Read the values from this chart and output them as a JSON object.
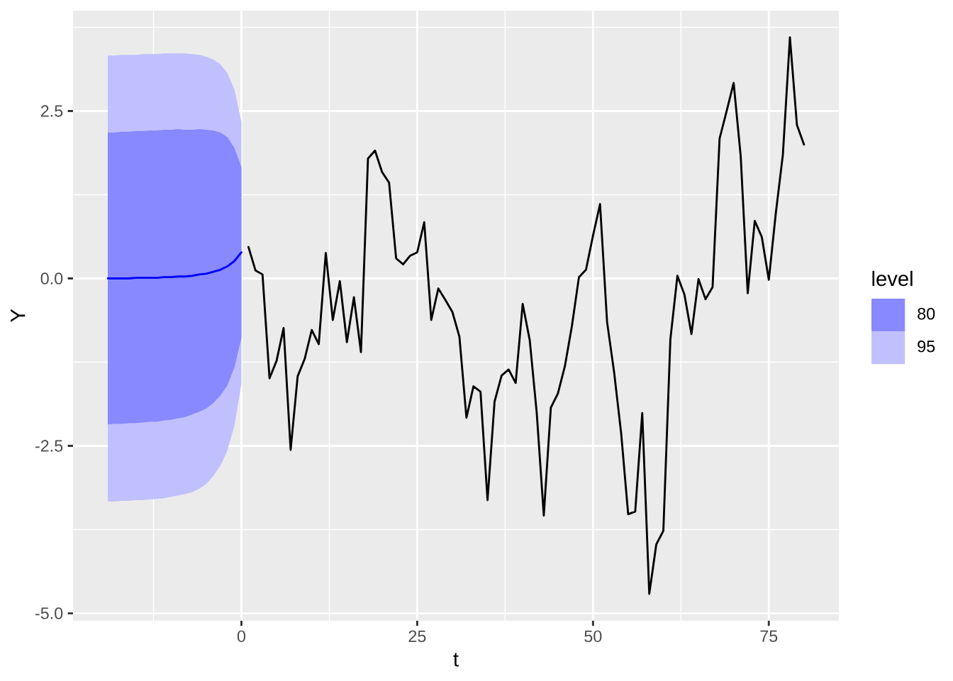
{
  "chart_data": {
    "type": "line",
    "xlabel": "t",
    "ylabel": "Y",
    "legend_title": "level",
    "legend": "right",
    "grid": true,
    "xlim": [
      -23.95,
      84.95
    ],
    "xticks": [
      0,
      25,
      50,
      75
    ],
    "ylim": [
      -5.11,
      4.0
    ],
    "yticks": [
      {
        "value": -5,
        "label": "-5.0"
      },
      {
        "value": -2.5,
        "label": "-2.5"
      },
      {
        "value": 0,
        "label": "0.0"
      },
      {
        "value": 2.5,
        "label": "2.5"
      }
    ],
    "series": [
      {
        "name": "95",
        "type": "area",
        "color": "#c0c0ff",
        "x": [
          -19,
          -18,
          -17,
          -16,
          -15,
          -14,
          -13,
          -12,
          -11,
          -10,
          -9,
          -8,
          -7,
          -6,
          -5,
          -4,
          -3,
          -2,
          -1,
          0
        ],
        "values": [
          null,
          null,
          null,
          null,
          null,
          null,
          null,
          null,
          null,
          null,
          null,
          null,
          null,
          null,
          null,
          null,
          null,
          null,
          null,
          null
        ],
        "lower": [
          -3.33,
          -3.33,
          -3.32,
          -3.32,
          -3.31,
          -3.31,
          -3.3,
          -3.29,
          -3.28,
          -3.26,
          -3.24,
          -3.22,
          -3.19,
          -3.14,
          -3.07,
          -2.95,
          -2.8,
          -2.57,
          -2.2,
          -1.57
        ],
        "upper": [
          3.33,
          3.33,
          3.34,
          3.34,
          3.34,
          3.35,
          3.35,
          3.35,
          3.36,
          3.36,
          3.36,
          3.36,
          3.35,
          3.34,
          3.31,
          3.27,
          3.2,
          3.07,
          2.82,
          2.34
        ]
      },
      {
        "name": "80",
        "type": "area",
        "color": "#8888ff",
        "x": [
          -19,
          -18,
          -17,
          -16,
          -15,
          -14,
          -13,
          -12,
          -11,
          -10,
          -9,
          -8,
          -7,
          -6,
          -5,
          -4,
          -3,
          -2,
          -1,
          0
        ],
        "values": [
          null,
          null,
          null,
          null,
          null,
          null,
          null,
          null,
          null,
          null,
          null,
          null,
          null,
          null,
          null,
          null,
          null,
          null,
          null,
          null
        ],
        "lower": [
          -2.18,
          -2.17,
          -2.17,
          -2.16,
          -2.16,
          -2.15,
          -2.14,
          -2.14,
          -2.12,
          -2.11,
          -2.09,
          -2.07,
          -2.03,
          -1.99,
          -1.94,
          -1.86,
          -1.75,
          -1.6,
          -1.33,
          -0.89
        ],
        "upper": [
          2.18,
          2.18,
          2.19,
          2.19,
          2.2,
          2.2,
          2.21,
          2.21,
          2.22,
          2.22,
          2.23,
          2.22,
          2.22,
          2.23,
          2.22,
          2.21,
          2.18,
          2.11,
          1.95,
          1.66
        ]
      },
      {
        "type": "line",
        "color": "#0000ff",
        "x": [
          -19,
          -18,
          -17,
          -16,
          -15,
          -14,
          -13,
          -12,
          -11,
          -10,
          -9,
          -8,
          -7,
          -6,
          -5,
          -4,
          -3,
          -2,
          -1,
          0
        ],
        "values": [
          0.0,
          0.0,
          0.0,
          0.0,
          0.01,
          0.01,
          0.01,
          0.01,
          0.02,
          0.02,
          0.03,
          0.03,
          0.04,
          0.06,
          0.07,
          0.1,
          0.13,
          0.18,
          0.26,
          0.39
        ]
      },
      {
        "type": "line",
        "color": "#000000",
        "x": [
          1,
          2,
          3,
          4,
          5,
          6,
          7,
          8,
          9,
          10,
          11,
          12,
          13,
          14,
          15,
          16,
          17,
          18,
          19,
          20,
          21,
          22,
          23,
          24,
          25,
          26,
          27,
          28,
          29,
          30,
          31,
          32,
          33,
          34,
          35,
          36,
          37,
          38,
          39,
          40,
          41,
          42,
          43,
          44,
          45,
          46,
          47,
          48,
          49,
          50,
          51,
          52,
          53,
          54,
          55,
          56,
          57,
          58,
          59,
          60,
          61,
          62,
          63,
          64,
          65,
          66,
          67,
          68,
          69,
          70,
          71,
          72,
          73,
          74,
          75,
          76,
          77,
          78,
          79,
          80
        ],
        "values": [
          0.47,
          0.12,
          0.06,
          -1.49,
          -1.23,
          -0.74,
          -2.56,
          -1.46,
          -1.2,
          -0.77,
          -0.98,
          0.38,
          -0.62,
          -0.04,
          -0.95,
          -0.28,
          -1.1,
          1.79,
          1.91,
          1.59,
          1.43,
          0.3,
          0.21,
          0.34,
          0.39,
          0.84,
          -0.62,
          -0.15,
          -0.32,
          -0.5,
          -0.87,
          -2.08,
          -1.61,
          -1.69,
          -3.31,
          -1.84,
          -1.45,
          -1.36,
          -1.56,
          -0.38,
          -0.92,
          -2.01,
          -3.54,
          -1.93,
          -1.72,
          -1.31,
          -0.71,
          0.02,
          0.13,
          0.64,
          1.11,
          -0.65,
          -1.4,
          -2.31,
          -3.52,
          -3.48,
          -2.01,
          -4.71,
          -3.97,
          -3.77,
          -0.91,
          0.04,
          -0.24,
          -0.83,
          -0.01,
          -0.31,
          -0.13,
          2.09,
          2.5,
          2.92,
          1.83,
          -0.22,
          0.86,
          0.62,
          -0.02,
          0.98,
          1.85,
          3.6,
          2.29,
          2.0
        ]
      }
    ]
  }
}
